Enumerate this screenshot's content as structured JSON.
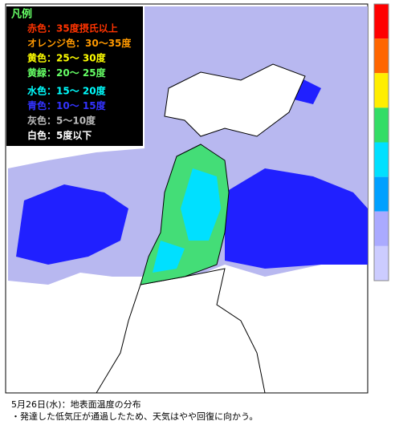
{
  "legend": {
    "title": "凡例",
    "items": [
      {
        "label": "赤色：35度摂氏以上",
        "color": "#ff3300"
      },
      {
        "label": "オレンジ色：30～35度",
        "color": "#ff9900"
      },
      {
        "label": "黄色：25～ 30度",
        "color": "#ffff00"
      },
      {
        "label": "黄緑：20～ 25度",
        "color": "#66ff66"
      },
      {
        "label": "水色：15～ 20度",
        "color": "#00ffff"
      },
      {
        "label": "青色：10～ 15度",
        "color": "#3333ff"
      },
      {
        "label": "灰色：5～10度",
        "color": "#bbbbbb"
      },
      {
        "label": "白色：5度以下",
        "color": "#ffffff"
      }
    ]
  },
  "colorbar": [
    "#ff0000",
    "#ff6600",
    "#ffee00",
    "#33dd66",
    "#00e0ff",
    "#00a0ff",
    "#aaaaff",
    "#ccccff"
  ],
  "caption": [
    "5月26日(水)：地表面温度の分布",
    "・発達した低気圧が通過したため、天気はやや回復に向かう。"
  ]
}
